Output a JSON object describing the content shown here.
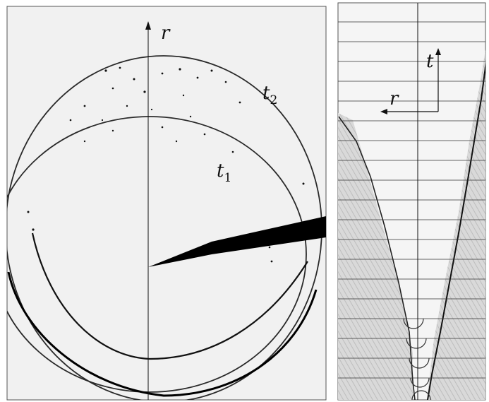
{
  "left_panel": {
    "axis_label": "r",
    "time_label_1": {
      "base": "t",
      "sub": "1"
    },
    "time_label_2": {
      "base": "t",
      "sub": "2"
    }
  },
  "right_panel": {
    "axis_time": "t",
    "axis_radius": "r"
  }
}
